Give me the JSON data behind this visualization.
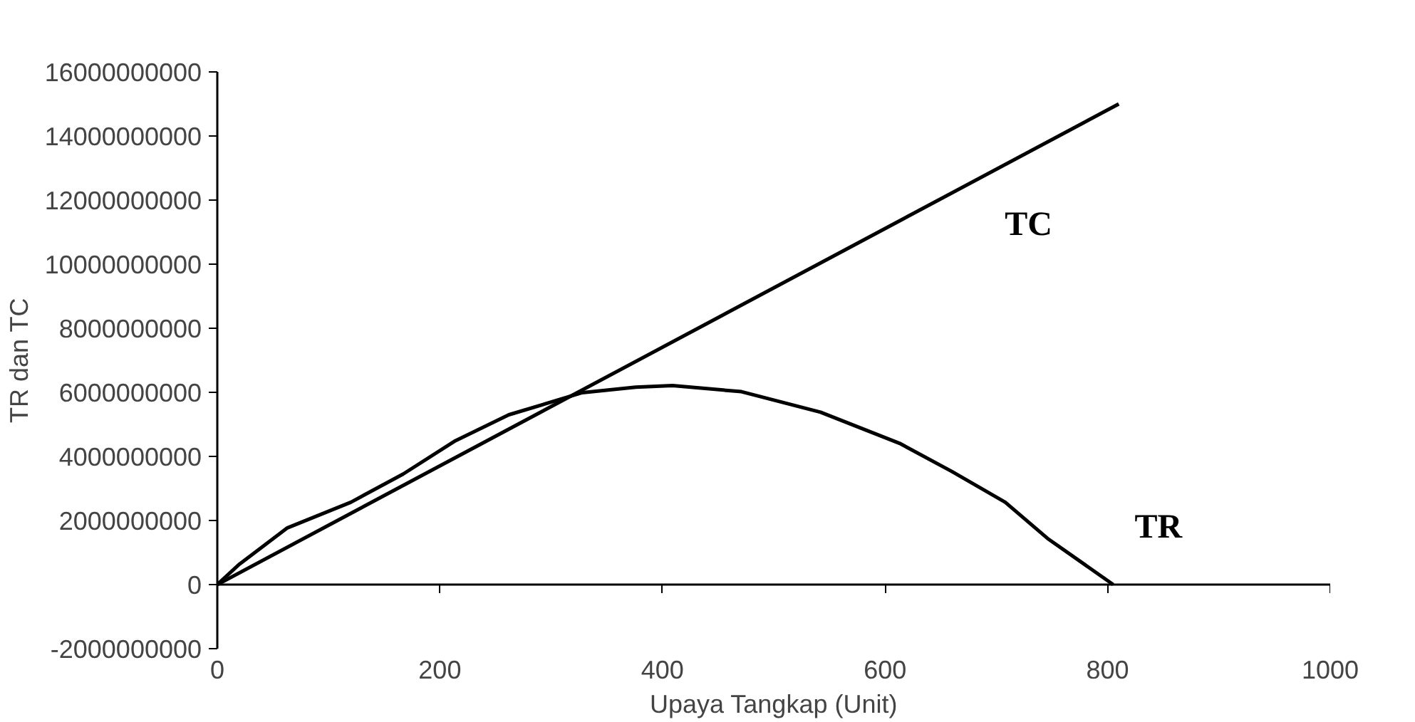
{
  "chart_data": {
    "type": "line",
    "xlabel": "Upaya Tangkap (Unit)",
    "ylabel": "TR dan TC",
    "xlim": [
      0,
      1000
    ],
    "xticks": [
      0,
      200,
      400,
      600,
      800,
      1000
    ],
    "ylim": [
      -2000000000,
      16000000000
    ],
    "yticks": [
      -2000000000,
      0,
      2000000000,
      4000000000,
      6000000000,
      8000000000,
      10000000000,
      12000000000,
      14000000000,
      16000000000
    ],
    "marker": "none",
    "line_style": "solid",
    "series": [
      {
        "name": "TC",
        "color": "#000000",
        "x": [
          0,
          810
        ],
        "values": [
          0,
          15000000000
        ]
      },
      {
        "name": "TR",
        "color": "#000000",
        "x": [
          0,
          20,
          63,
          120,
          167,
          214,
          262,
          328,
          376,
          409,
          471,
          542,
          613,
          660,
          708,
          746,
          805
        ],
        "values": [
          0,
          640000000,
          1770000000,
          2570000000,
          3450000000,
          4490000000,
          5300000000,
          5990000000,
          6160000000,
          6210000000,
          6020000000,
          5380000000,
          4410000000,
          3530000000,
          2570000000,
          1440000000,
          0
        ]
      }
    ]
  }
}
